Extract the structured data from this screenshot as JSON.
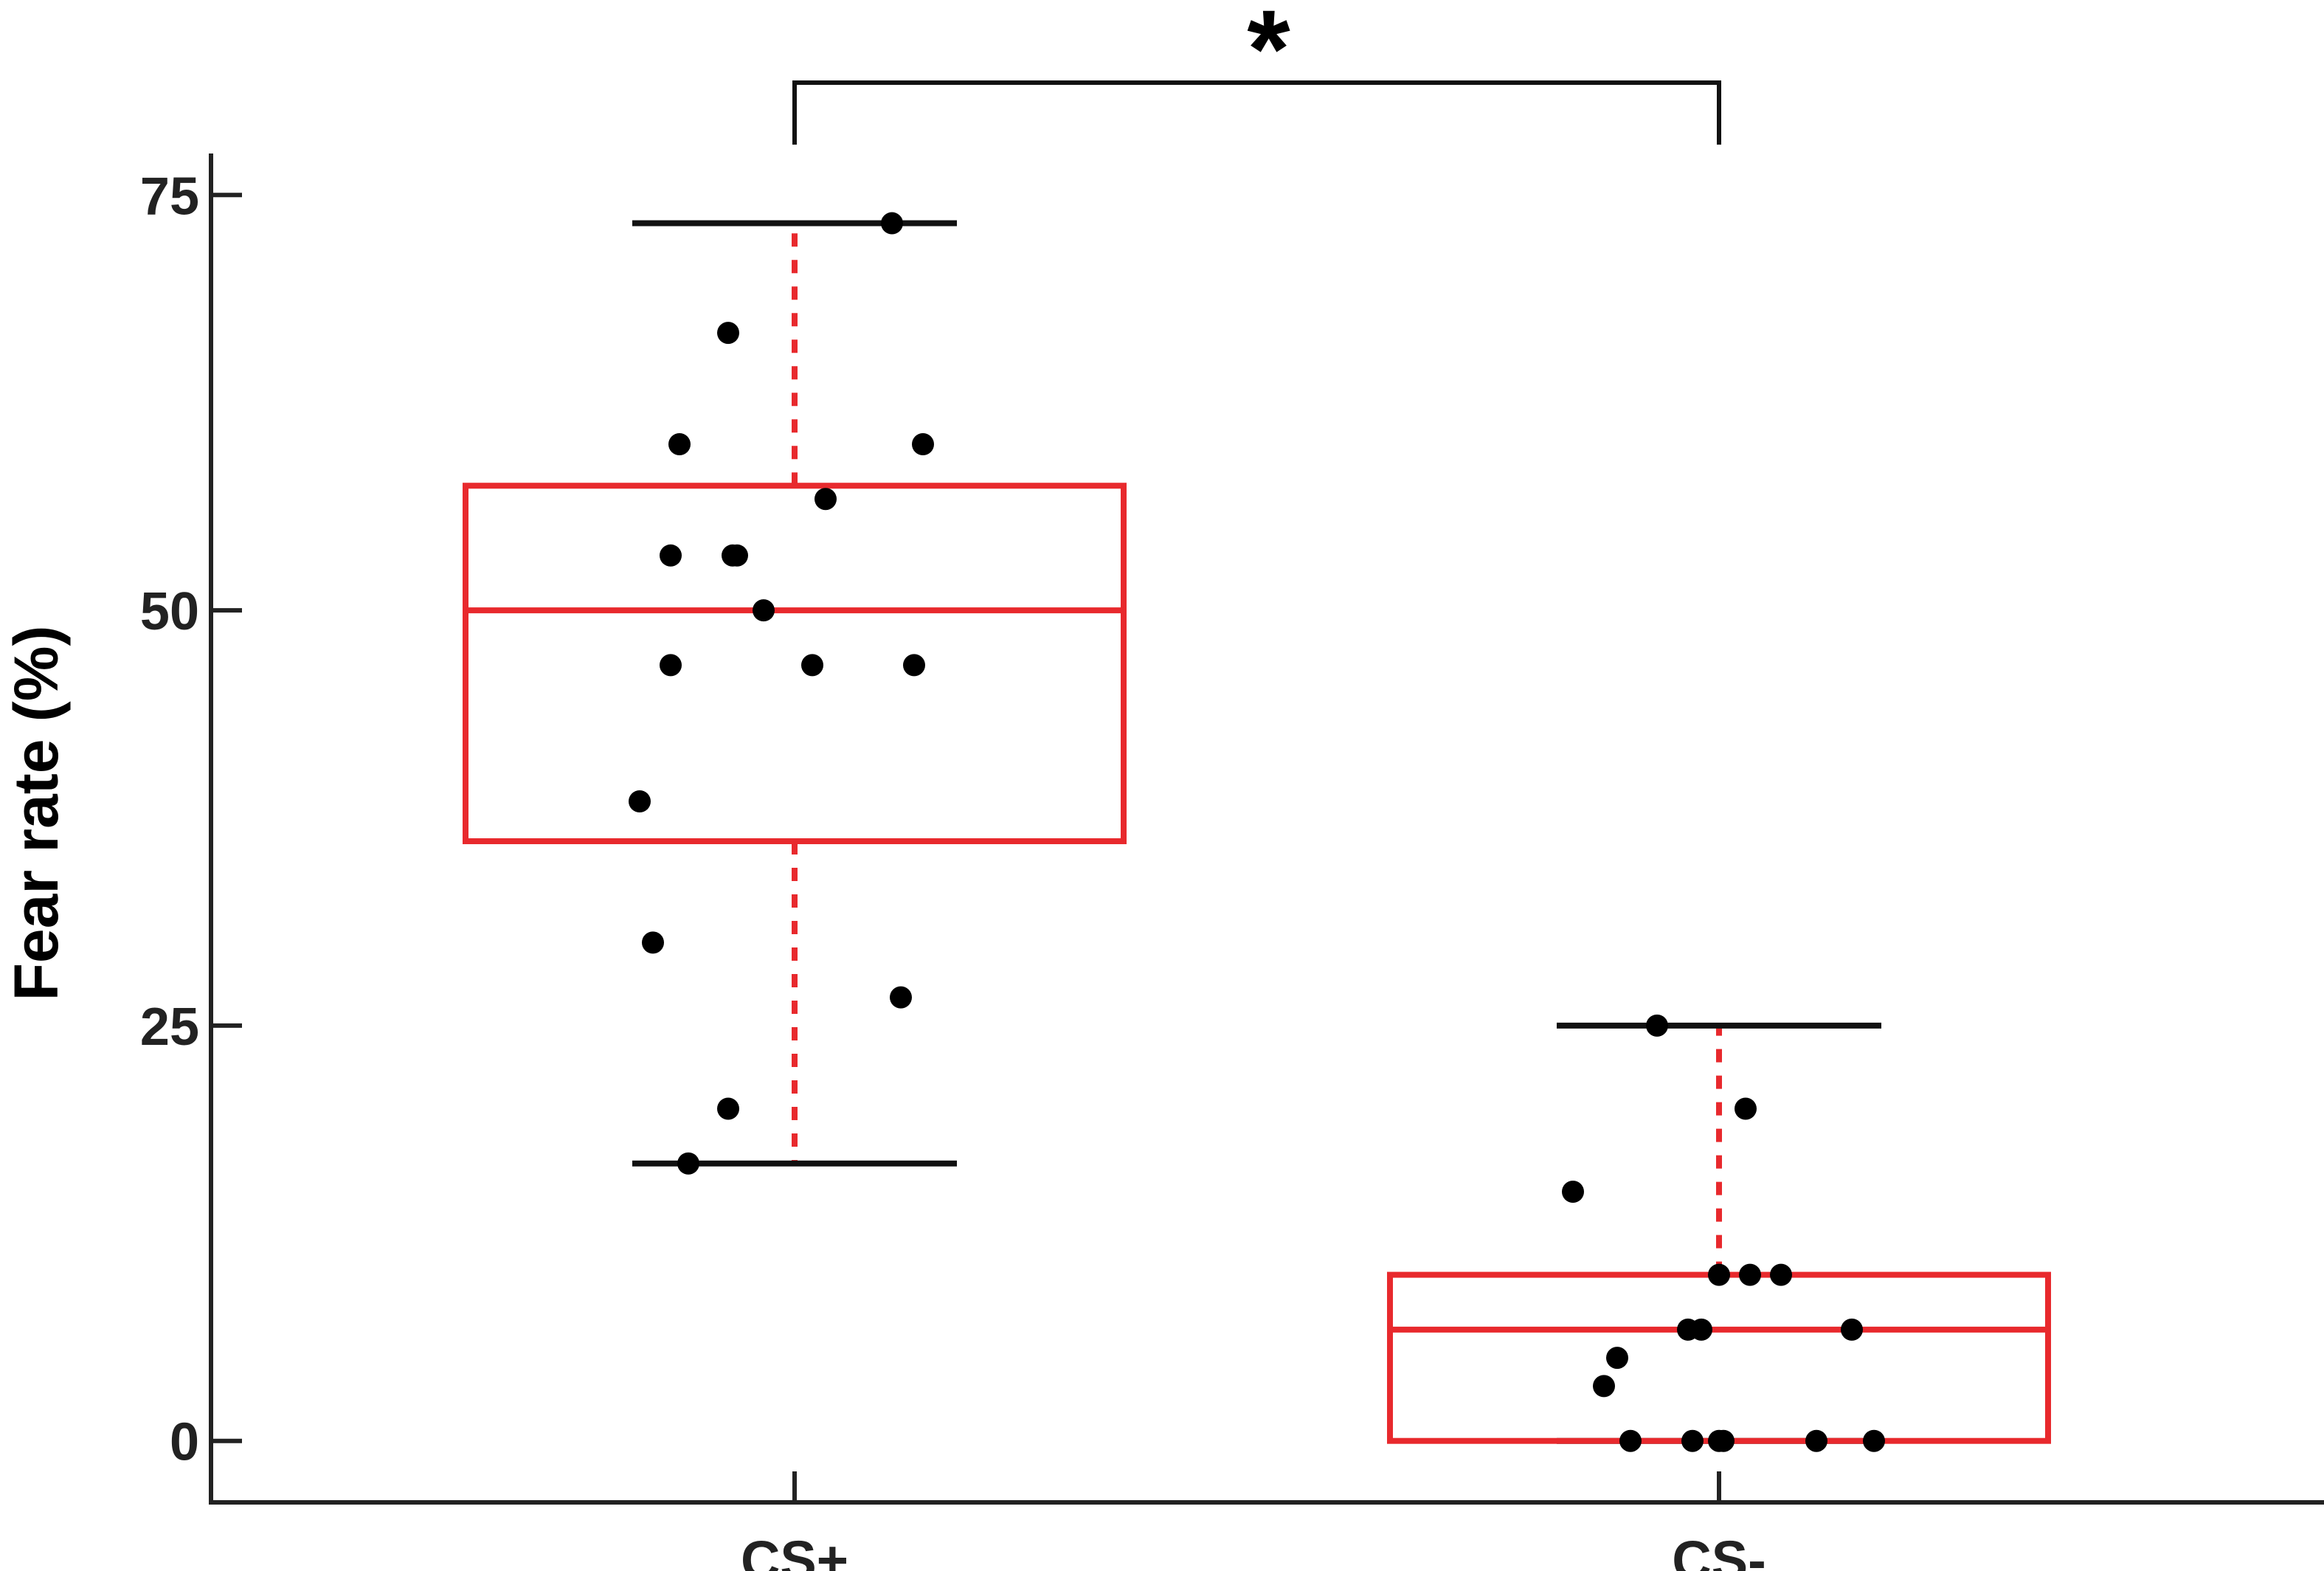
{
  "chart_data": {
    "type": "box",
    "title": "",
    "xlabel": "",
    "ylabel": "Fear rate (%)",
    "ylim": [
      -3.7,
      77.5
    ],
    "yticks": [
      0,
      25,
      50,
      75
    ],
    "ytick_labels": [
      "0",
      "25",
      "50",
      "75"
    ],
    "categories": [
      "CS+",
      "CS-"
    ],
    "boxes": [
      {
        "category": "CS+",
        "q1": 36.1,
        "median": 50,
        "q3": 57.5,
        "whisker_low": 16.7,
        "whisker_high": 73.3,
        "points": [
          73.3,
          66.7,
          60,
          60,
          56.7,
          53.3,
          53.3,
          53.3,
          50,
          46.7,
          46.7,
          46.7,
          38.5,
          30,
          26.7,
          20,
          16.7
        ],
        "jitter": [
          0.22,
          -0.15,
          -0.26,
          0.29,
          0.07,
          -0.28,
          -0.14,
          -0.13,
          -0.07,
          -0.28,
          0.04,
          0.27,
          -0.35,
          -0.32,
          0.24,
          -0.15,
          -0.24
        ]
      },
      {
        "category": "CS-",
        "q1": 0,
        "median": 6.7,
        "q3": 10,
        "whisker_low": 0,
        "whisker_high": 25,
        "points": [
          25,
          20,
          15,
          10,
          10,
          10,
          6.7,
          6.7,
          6.7,
          5,
          3.3,
          0,
          0,
          0,
          0,
          0,
          0
        ],
        "jitter": [
          -0.14,
          0.06,
          -0.33,
          0,
          0.07,
          0.14,
          -0.07,
          -0.04,
          0.3,
          -0.23,
          -0.26,
          -0.2,
          -0.06,
          0,
          0.01,
          0.22,
          0.35
        ]
      }
    ],
    "significance": {
      "from": "CS+",
      "to": "CS-",
      "label": "*"
    },
    "colors": {
      "box": "#e8292d",
      "whisker_cap": "#111111",
      "points": "#000000",
      "axis": "#222222"
    }
  }
}
